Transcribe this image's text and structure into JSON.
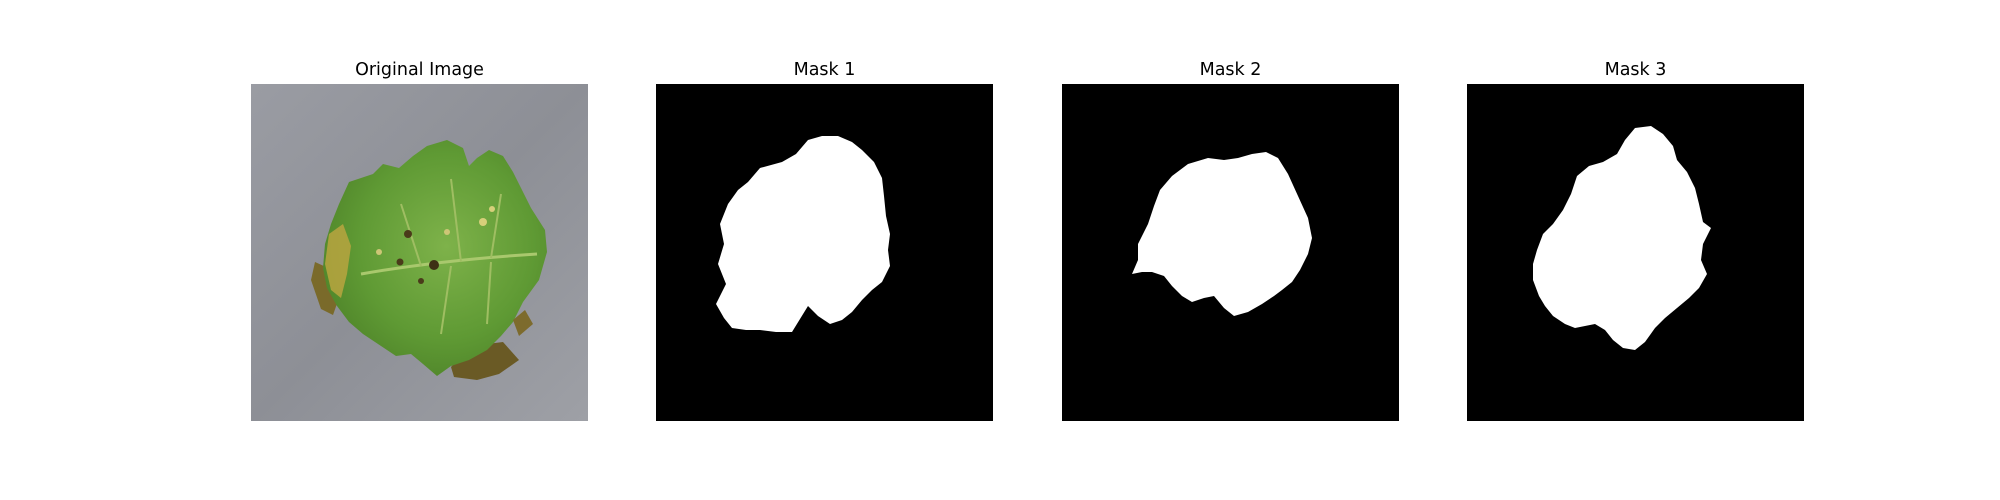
{
  "figure": {
    "panels": [
      {
        "title": "Original Image",
        "content": "photo of a green tomato leaf with yellow and brown lesions on a gray background"
      },
      {
        "title": "Mask 1",
        "content": "binary segmentation mask, white leaf region on black"
      },
      {
        "title": "Mask 2",
        "content": "binary segmentation mask, white leaf region on black"
      },
      {
        "title": "Mask 3",
        "content": "binary segmentation mask, white leaf region on black"
      }
    ]
  },
  "colors": {
    "background": "#ffffff",
    "mask_background": "#000000",
    "mask_foreground": "#ffffff",
    "leaf_green": "#6fa23c",
    "photo_background": "#8f9197"
  }
}
